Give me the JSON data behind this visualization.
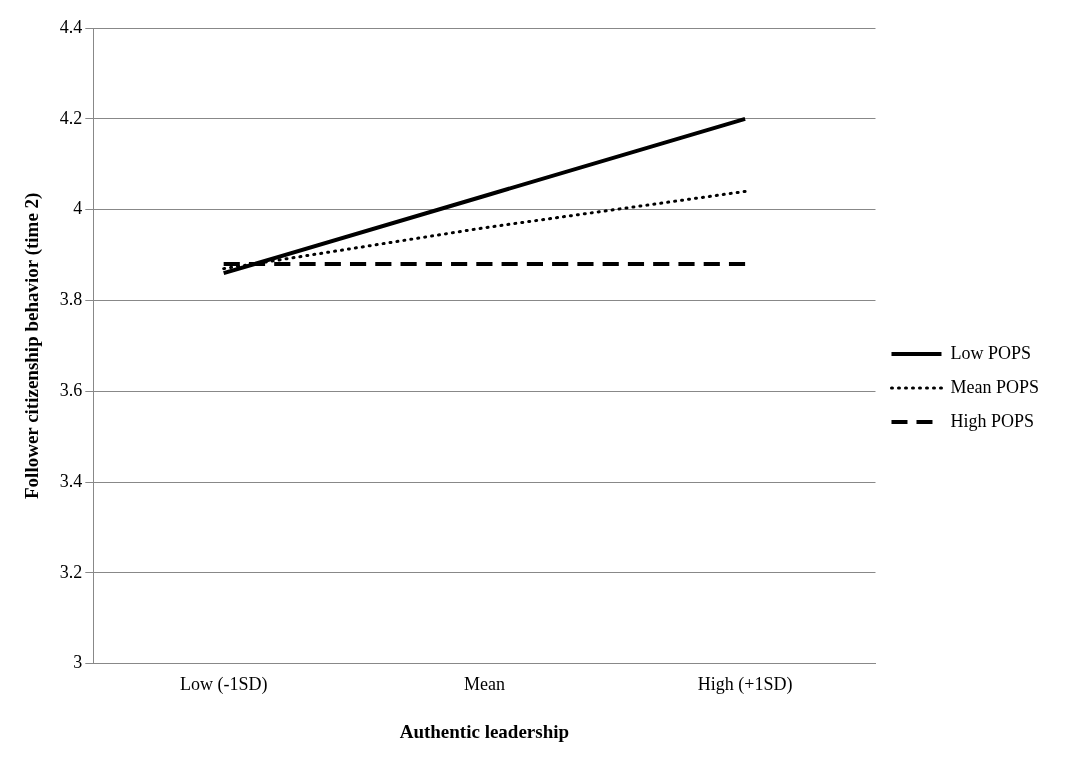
{
  "chart_data": {
    "type": "line",
    "xlabel": "Authentic leadership",
    "ylabel": "Follower citizenship behavior (time 2)",
    "categories": [
      "Low (-1SD)",
      "Mean",
      "High (+1SD)"
    ],
    "series": [
      {
        "name": "Low POPS",
        "color": "#000000",
        "line_style": "solid",
        "values": [
          3.86,
          4.03,
          4.2
        ]
      },
      {
        "name": "Mean POPS",
        "color": "#000000",
        "line_style": "dotted",
        "values": [
          3.87,
          3.96,
          4.04
        ]
      },
      {
        "name": "High POPS",
        "color": "#000000",
        "line_style": "dashed",
        "values": [
          3.88,
          3.88,
          3.88
        ]
      }
    ],
    "ylim": [
      3,
      4.4
    ],
    "yticks": [
      3,
      3.2,
      3.4,
      3.6,
      3.8,
      4,
      4.2,
      4.4
    ],
    "grid": "y",
    "legend": "right",
    "marker": "none"
  }
}
